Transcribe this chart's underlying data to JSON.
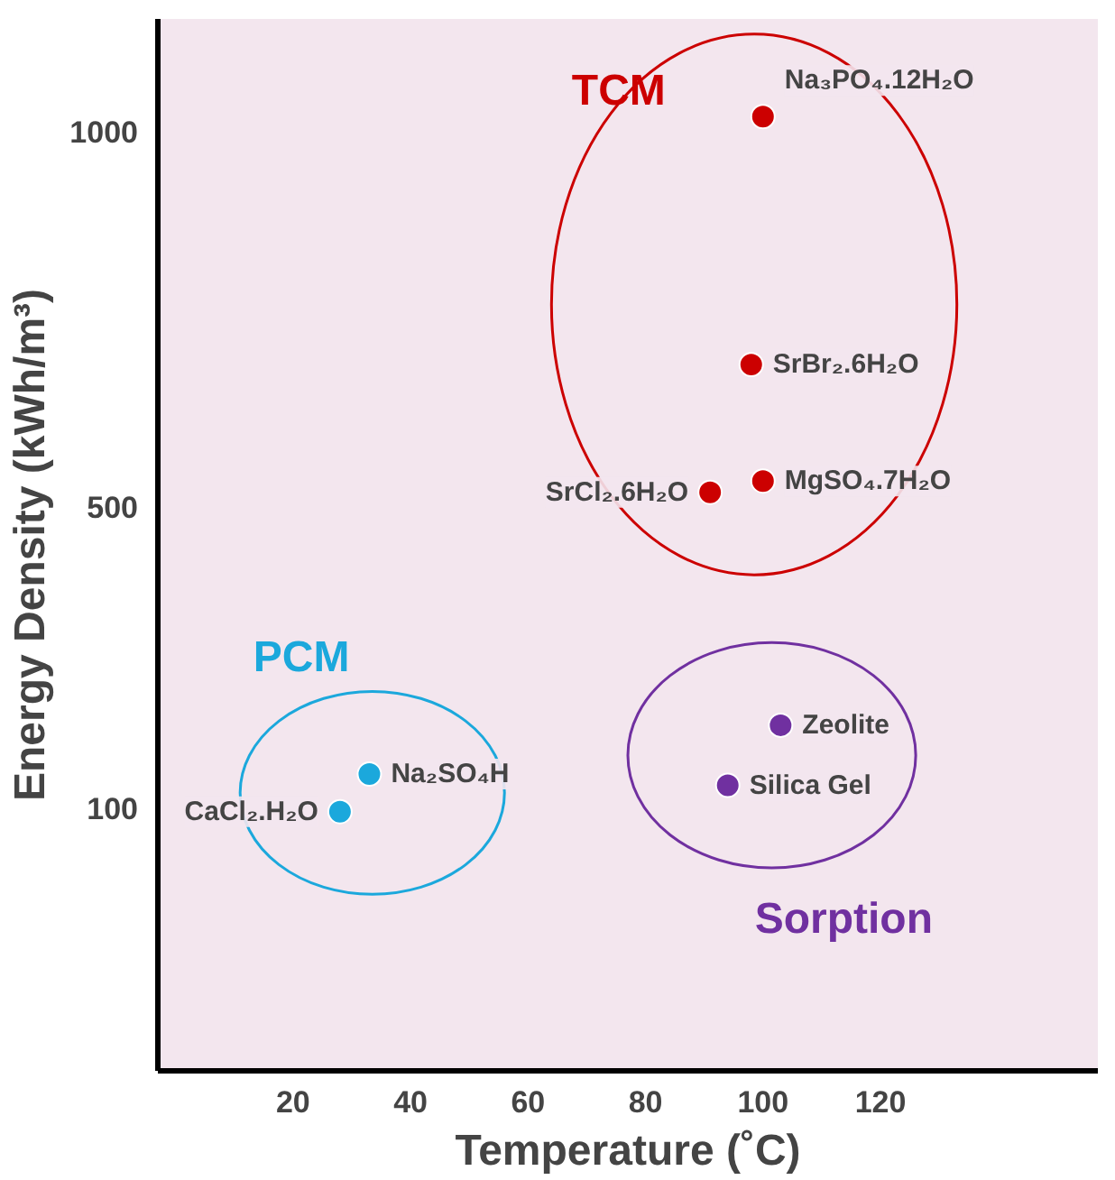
{
  "chart_data": {
    "type": "scatter",
    "xlabel": "Temperature (˚C)",
    "ylabel": "Energy Density (kWh/m³)",
    "xlim": [
      -3,
      157
    ],
    "ylim": [
      -250,
      1150
    ],
    "xticks": [
      20,
      40,
      60,
      80,
      100,
      120
    ],
    "yticks": [
      100,
      500,
      1000
    ],
    "grid": false,
    "marker": "circle",
    "series": [
      {
        "name": "TCM",
        "color": "#cc0000",
        "x": [
          100,
          98,
          91,
          100
        ],
        "values": [
          1020,
          690,
          520,
          535
        ]
      },
      {
        "name": "PCM",
        "color": "#1ba8dc",
        "x": [
          33,
          28
        ],
        "values": [
          145,
          95
        ]
      },
      {
        "name": "Sorption",
        "color": "#7030a0",
        "x": [
          103,
          94
        ],
        "values": [
          210,
          130
        ]
      }
    ],
    "annotations": [
      {
        "text": "Na₃PO₄.12H₂O",
        "x": 100,
        "y": 1020
      },
      {
        "text": "SrBr₂.6H₂O",
        "x": 98,
        "y": 690
      },
      {
        "text": "SrCl₂.6H₂O",
        "x": 91,
        "y": 520
      },
      {
        "text": "MgSO₄.7H₂O",
        "x": 100,
        "y": 535
      },
      {
        "text": "Na₂SO₄H",
        "x": 33,
        "y": 145
      },
      {
        "text": "CaCl₂.H₂O",
        "x": 28,
        "y": 95
      },
      {
        "text": "Zeolite",
        "x": 103,
        "y": 210
      },
      {
        "text": "Silica Gel",
        "x": 94,
        "y": 130
      }
    ]
  }
}
